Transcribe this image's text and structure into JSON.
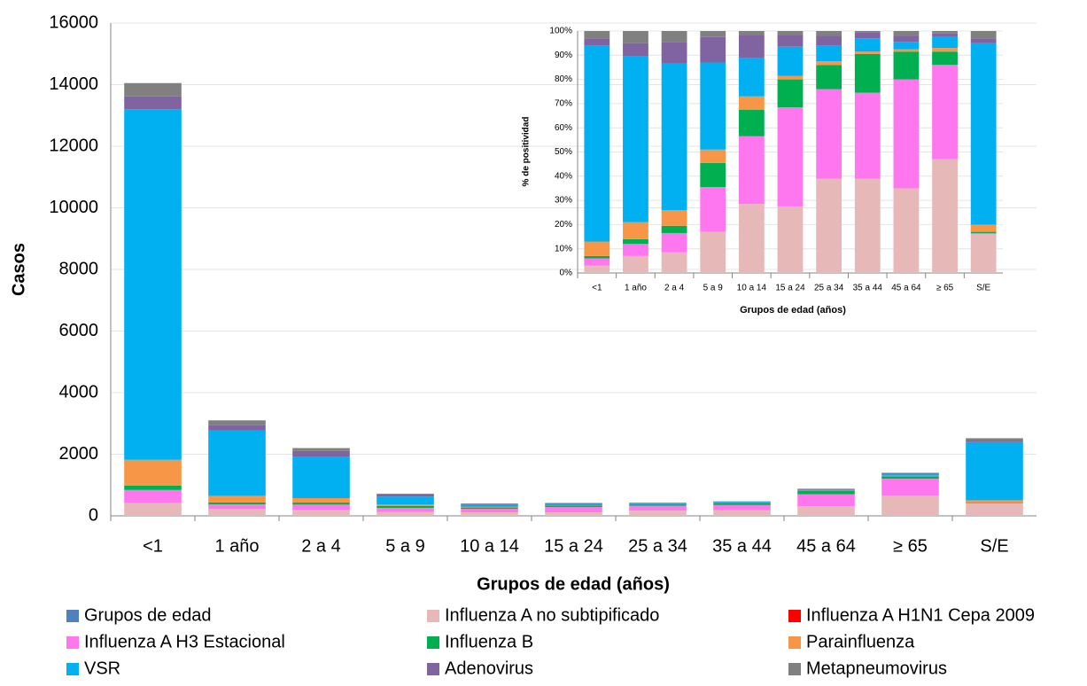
{
  "chart_data": [
    {
      "type": "stacked_bar",
      "x_label": "Grupos de edad (años)",
      "y_label": "Casos",
      "categories": [
        "<1",
        "1 año",
        "2 a 4",
        "5 a 9",
        "10 a 14",
        "15 a 24",
        "25 a 34",
        "35 a 44",
        "45 a 64",
        "≥ 65",
        "S/E"
      ],
      "ylim": [
        0,
        16000
      ],
      "yticks": [
        0,
        2000,
        4000,
        6000,
        8000,
        10000,
        12000,
        14000,
        16000
      ],
      "grid": true,
      "legend": "bottom",
      "series": [
        {
          "name": "Grupos de edad",
          "color": "#4f81bd",
          "values": [
            0,
            0,
            0,
            0,
            0,
            0,
            0,
            0,
            0,
            0,
            0
          ]
        },
        {
          "name": "Influenza A no subtipificado",
          "color": "#e6b9b8",
          "values": [
            420,
            220,
            190,
            120,
            115,
            115,
            170,
            185,
            310,
            660,
            405
          ]
        },
        {
          "name": "Influenza A H1N1 Cepa 2009",
          "color": "#ff0000",
          "values": [
            0,
            0,
            0,
            0,
            0,
            0,
            0,
            0,
            0,
            0,
            0
          ]
        },
        {
          "name": "Influenza A H3 Estacional",
          "color": "#ff77ee",
          "values": [
            420,
            155,
            175,
            135,
            110,
            170,
            160,
            165,
            395,
            545,
            13
          ]
        },
        {
          "name": "Influenza B",
          "color": "#00b050",
          "values": [
            140,
            60,
            65,
            70,
            45,
            50,
            43,
            75,
            100,
            77,
            13
          ]
        },
        {
          "name": "Parainfluenza",
          "color": "#f79646",
          "values": [
            840,
            215,
            145,
            40,
            20,
            5,
            6,
            5,
            9,
            21,
            75
          ]
        },
        {
          "name": "VSR",
          "color": "#00b0f0",
          "values": [
            11380,
            2125,
            1330,
            260,
            65,
            50,
            28,
            25,
            26,
            63,
            1890
          ]
        },
        {
          "name": "Adenovirus",
          "color": "#8064a2",
          "values": [
            420,
            170,
            200,
            75,
            40,
            22,
            15,
            12,
            22,
            20,
            50
          ]
        },
        {
          "name": "Metapneumovirus",
          "color": "#808080",
          "values": [
            430,
            155,
            95,
            20,
            5,
            8,
            8,
            3,
            18,
            14,
            74
          ]
        }
      ]
    },
    {
      "type": "stacked_bar",
      "x_label": "Grupos de edad (años)",
      "y_label": "% de positividad",
      "categories": [
        "<1",
        "1 año",
        "2 a 4",
        "5 a 9",
        "10 a 14",
        "15 a 24",
        "25 a 34",
        "35 a 44",
        "45 a 64",
        "≥ 65",
        "S/E"
      ],
      "ylim": [
        0,
        100
      ],
      "yticks": [
        {
          "value": 0,
          "label": "0%"
        },
        {
          "value": 10,
          "label": "10%"
        },
        {
          "value": 20,
          "label": "20%"
        },
        {
          "value": 30,
          "label": "30%"
        },
        {
          "value": 40,
          "label": "40%"
        },
        {
          "value": 50,
          "label": "50%"
        },
        {
          "value": 60,
          "label": "60%"
        },
        {
          "value": 70,
          "label": "70%"
        },
        {
          "value": 80,
          "label": "80%"
        },
        {
          "value": 90,
          "label": "90%"
        },
        {
          "value": 100,
          "label": "100%"
        }
      ],
      "grid": true,
      "series": [
        {
          "color": "#4f81bd",
          "values": [
            0,
            0,
            0,
            0,
            0,
            0,
            0,
            0,
            0,
            0,
            0
          ]
        },
        {
          "color": "#e6b9b8",
          "values": [
            3,
            7,
            8.5,
            17,
            28.5,
            27.5,
            39,
            39,
            35,
            47,
            16
          ]
        },
        {
          "color": "#ff0000",
          "values": [
            0,
            0,
            0,
            0,
            0,
            0,
            0,
            0,
            0,
            0,
            0
          ]
        },
        {
          "color": "#ff77ee",
          "values": [
            3,
            5,
            8,
            18.5,
            28,
            41,
            37,
            35.5,
            45,
            39,
            0.5
          ]
        },
        {
          "color": "#00b050",
          "values": [
            1,
            2,
            3,
            10,
            11,
            11.5,
            10,
            16,
            11.5,
            5.5,
            0.5
          ]
        },
        {
          "color": "#f79646",
          "values": [
            6,
            7,
            6.5,
            5.5,
            5.5,
            1.5,
            1.5,
            1,
            1,
            1.5,
            3
          ]
        },
        {
          "color": "#00b0f0",
          "values": [
            81,
            68.5,
            60.5,
            36,
            16,
            12,
            6.5,
            5.5,
            3,
            4.5,
            75
          ]
        },
        {
          "color": "#8064a2",
          "values": [
            3,
            5.5,
            9,
            10.5,
            9.5,
            5,
            4,
            2.5,
            2.5,
            1.5,
            2
          ]
        },
        {
          "color": "#808080",
          "values": [
            3,
            5,
            4.5,
            2.5,
            1.5,
            1.5,
            2,
            0.5,
            2,
            1,
            3
          ]
        }
      ]
    }
  ]
}
